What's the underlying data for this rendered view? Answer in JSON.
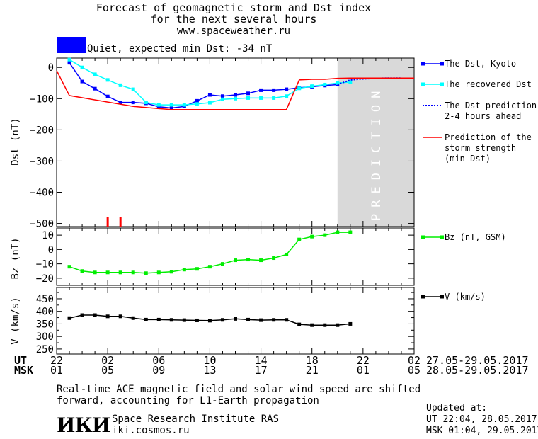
{
  "header": {
    "title_line1": "Forecast of geomagnetic storm and Dst index",
    "title_line2": "for the next several hours",
    "website": "www.spaceweather.ru"
  },
  "status": {
    "text": "Quiet, expected min Dst: -34 nT",
    "color": "#0000ff"
  },
  "legend": {
    "dst_kyoto": "The Dst, Kyoto",
    "recovered": "The recovered Dst",
    "prediction_line1": "The Dst prediction",
    "prediction_line2": "2-4 hours ahead",
    "storm_line1": "Prediction of the",
    "storm_line2": "storm strength",
    "storm_line3": "(min Dst)",
    "bz": "Bz (nT, GSM)",
    "v": "V (km/s)"
  },
  "time_axis": {
    "ut_label": "UT",
    "msk_label": "MSK",
    "ut_ticks": [
      "22",
      "02",
      "06",
      "10",
      "14",
      "18",
      "22",
      "02"
    ],
    "msk_ticks": [
      "01",
      "05",
      "09",
      "13",
      "17",
      "21",
      "01",
      "05"
    ],
    "ut_range": "27.05-29.05.2017",
    "msk_range": "28.05-29.05.2017"
  },
  "footer": {
    "note_line1": "Real-time ACE magnetic field and solar wind speed are shifted",
    "note_line2": "forward, accounting for L1-Earth propagation",
    "institute": "Space Research Institute RAS",
    "institute_url": "iki.cosmos.ru",
    "logo_text": "ИКИ",
    "updated_label": "Updated at:",
    "updated_ut": "UT   22:04, 28.05.2017",
    "updated_msk": "MSK 01:04, 29.05.2017"
  },
  "chart_data": [
    {
      "type": "line",
      "ylabel": "Dst (nT)",
      "ylim": [
        -510,
        30
      ],
      "xlim": [
        22,
        50
      ],
      "yticks": [
        0,
        -100,
        -200,
        -300,
        -400,
        -500
      ],
      "prediction_region": {
        "x_start": 44,
        "x_end": 50,
        "label": "PREDICTION"
      },
      "series": [
        {
          "name": "The Dst, Kyoto",
          "color": "#0000ff",
          "x": [
            23,
            24,
            25,
            26,
            27,
            28,
            29,
            30,
            31,
            32,
            33,
            34,
            35,
            36,
            37,
            38,
            39,
            40,
            41,
            42,
            43,
            44
          ],
          "y": [
            15,
            -45,
            -68,
            -93,
            -112,
            -112,
            -115,
            -126,
            -130,
            -125,
            -107,
            -88,
            -92,
            -88,
            -83,
            -73,
            -73,
            -70,
            -65,
            -62,
            -58,
            -55
          ]
        },
        {
          "name": "The recovered Dst",
          "color": "#00ffff",
          "x": [
            23,
            24,
            25,
            26,
            27,
            28,
            29,
            30,
            31,
            32,
            33,
            34,
            35,
            36,
            37,
            38,
            39,
            40,
            41,
            42,
            43,
            44,
            45
          ],
          "y": [
            25,
            0,
            -22,
            -40,
            -57,
            -70,
            -112,
            -120,
            -120,
            -120,
            -117,
            -113,
            -102,
            -100,
            -98,
            -98,
            -98,
            -92,
            -67,
            -60,
            -55,
            -50,
            -47
          ]
        },
        {
          "name": "The Dst prediction 2-4 hours ahead",
          "color": "#0000ff",
          "style": "dotted",
          "x": [
            44,
            45,
            46,
            47,
            48,
            49
          ],
          "y": [
            -55,
            -40,
            -37,
            -35,
            -34,
            -34
          ]
        },
        {
          "name": "Prediction of the storm strength (min Dst)",
          "color": "#ff0000",
          "x": [
            22,
            23,
            28,
            30,
            31,
            32,
            33,
            34,
            35,
            36,
            37,
            38,
            39,
            40,
            41,
            42,
            43,
            44,
            45,
            46,
            47,
            48,
            49,
            50
          ],
          "y": [
            -10,
            -90,
            -125,
            -132,
            -135,
            -135,
            -135,
            -135,
            -135,
            -135,
            -135,
            -135,
            -135,
            -135,
            -40,
            -38,
            -38,
            -35,
            -34,
            -34,
            -34,
            -34,
            -34,
            -34
          ]
        }
      ],
      "markers": {
        "color": "#ff0000",
        "x": [
          26,
          27
        ]
      }
    },
    {
      "type": "line",
      "ylabel": "Bz (nT)",
      "ylim": [
        -25,
        15
      ],
      "xlim": [
        22,
        50
      ],
      "yticks": [
        10,
        0,
        -10,
        -20
      ],
      "series": [
        {
          "name": "Bz (nT, GSM)",
          "color": "#00ee00",
          "x": [
            23,
            24,
            25,
            26,
            27,
            28,
            29,
            30,
            31,
            32,
            33,
            34,
            35,
            36,
            37,
            38,
            39,
            40,
            41,
            42,
            43,
            44,
            45
          ],
          "y": [
            -12,
            -15,
            -16,
            -16,
            -16,
            -16,
            -16.5,
            -16,
            -15.5,
            -14,
            -13.5,
            -12,
            -10,
            -7.5,
            -7,
            -7.5,
            -6,
            -3.5,
            7,
            9,
            10,
            12,
            12
          ]
        }
      ]
    },
    {
      "type": "line",
      "ylabel": "V (km/s)",
      "ylim": [
        230,
        495
      ],
      "xlim": [
        22,
        50
      ],
      "yticks": [
        450,
        400,
        350,
        300,
        250
      ],
      "yticks_minor": [
        475,
        425,
        375,
        325,
        275
      ],
      "series": [
        {
          "name": "V (km/s)",
          "color": "#000000",
          "x": [
            23,
            24,
            25,
            26,
            27,
            28,
            29,
            30,
            31,
            32,
            33,
            34,
            35,
            36,
            37,
            38,
            39,
            40,
            41,
            42,
            43,
            44,
            45
          ],
          "y": [
            373,
            385,
            385,
            380,
            380,
            373,
            367,
            367,
            366,
            365,
            364,
            363,
            366,
            370,
            367,
            365,
            366,
            366,
            348,
            345,
            345,
            345,
            350
          ]
        }
      ]
    }
  ]
}
